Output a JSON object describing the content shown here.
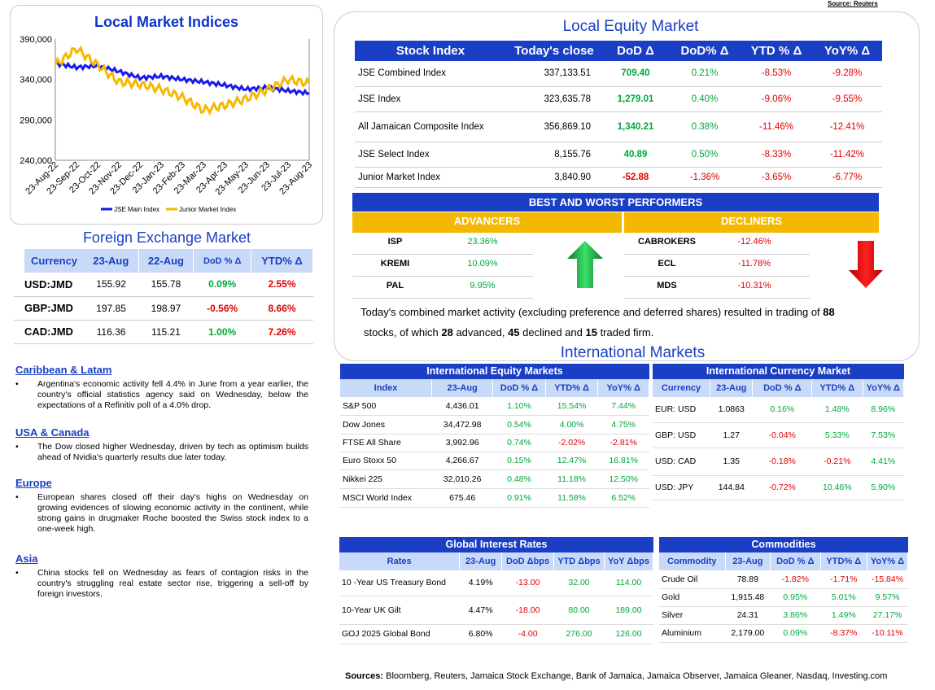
{
  "source_top": "Source: Reuters",
  "local_indices": {
    "title": "Local Market Indices",
    "y_ticks": [
      "390,000",
      "340,000",
      "290,000",
      "240,000"
    ],
    "legend": [
      "JSE Main Index",
      "Junior Market Index"
    ]
  },
  "chart_data": {
    "type": "line",
    "x": [
      "23-Aug-22",
      "23-Sep-22",
      "23-Oct-22",
      "23-Nov-22",
      "23-Dec-22",
      "23-Jan-23",
      "23-Feb-23",
      "23-Mar-23",
      "23-Apr-23",
      "23-May-23",
      "23-Jun-23",
      "23-Jul-23",
      "23-Aug-23"
    ],
    "ylim": [
      240000,
      390000
    ],
    "series": [
      {
        "name": "JSE Main Index",
        "color": "#1a1aee",
        "values": [
          360000,
          355000,
          357000,
          350000,
          342000,
          344000,
          340000,
          337000,
          333000,
          328000,
          330000,
          326000,
          323000
        ]
      },
      {
        "name": "Junior Market Index",
        "color": "#f5b800",
        "values": [
          358000,
          378000,
          358000,
          337000,
          334000,
          328000,
          318000,
          302000,
          308000,
          316000,
          327000,
          340000,
          335000
        ]
      }
    ]
  },
  "fx": {
    "title": "Foreign Exchange Market",
    "headers": [
      "Currency",
      "23-Aug",
      "22-Aug",
      "DoD % Δ",
      "YTD% Δ"
    ],
    "rows": [
      [
        "USD:JMD",
        "155.92",
        "155.78",
        "0.09%",
        "2.55%"
      ],
      [
        "GBP:JMD",
        "197.85",
        "198.97",
        "-0.56%",
        "8.66%"
      ],
      [
        "CAD:JMD",
        "116.36",
        "115.21",
        "1.00%",
        "7.26%"
      ]
    ]
  },
  "news": [
    {
      "head": "Caribbean & Latam",
      "text": "Argentina's economic activity fell 4.4% in June from a year earlier, the country's official statistics agency said on Wednesday, below the expectations of a Refinitiv poll of a 4.0% drop."
    },
    {
      "head": "USA & Canada",
      "text": "The Dow closed higher Wednesday, driven by tech as optimism builds ahead of Nvidia's quarterly results due later today."
    },
    {
      "head": "Europe",
      "text": "European shares closed off their day's highs on Wednesday on growing evidences of slowing economic activity in the continent, while strong gains in drugmaker Roche boosted the Swiss stock index to a one-week high."
    },
    {
      "head": "Asia",
      "text": "China stocks fell on Wednesday as fears of contagion risks in the country's struggling real estate sector rise, triggering a sell-off by foreign investors."
    }
  ],
  "equity": {
    "title": "Local Equity Market",
    "headers": [
      "Stock Index",
      "Today's close",
      "DoD  Δ",
      "DoD% Δ",
      "YTD % Δ",
      "YoY% Δ"
    ],
    "rows": [
      [
        "JSE Combined Index",
        "337,133.51",
        "709.40",
        "0.21%",
        "-8.53%",
        "-9.28%"
      ],
      [
        "JSE Index",
        "323,635.78",
        "1,279.01",
        "0.40%",
        "-9.06%",
        "-9.55%"
      ],
      [
        "All Jamaican Composite Index",
        "356,869.10",
        "1,340.21",
        "0.38%",
        "-11.46%",
        "-12.41%"
      ],
      [
        "JSE Select Index",
        "8,155.76",
        "40.89",
        "0.50%",
        "-8.33%",
        "-11.42%"
      ],
      [
        "Junior Market Index",
        "3,840.90",
        "-52.88",
        "-1.36%",
        "-3.65%",
        "-6.77%"
      ]
    ],
    "bw_title": "BEST AND WORST PERFORMERS",
    "adv_label": "ADVANCERS",
    "dec_label": "DECLINERS",
    "advancers": [
      [
        "ISP",
        "23.36%"
      ],
      [
        "KREMI",
        "10.09%"
      ],
      [
        "PAL",
        "9.95%"
      ]
    ],
    "decliners": [
      [
        "CABROKERS",
        "-12.46%"
      ],
      [
        "ECL",
        "-11.78%"
      ],
      [
        "MDS",
        "-10.31%"
      ]
    ],
    "summary_1": "Today's combined market activity (excluding preference and deferred shares) resulted in trading of ",
    "summary_n1": "88",
    "summary_2": "stocks, of which ",
    "summary_n2": "28",
    "summary_3": " advanced, ",
    "summary_n3": "45",
    "summary_4": " declined and ",
    "summary_n4": "15",
    "summary_5": " traded firm."
  },
  "intl": {
    "title": "International Markets",
    "eq_title": "International Equity Markets",
    "eq_headers": [
      "Index",
      "23-Aug",
      "DoD % Δ",
      "YTD% Δ",
      "YoY% Δ"
    ],
    "eq_rows": [
      [
        "S&P 500",
        "4,436.01",
        "1.10%",
        "15.54%",
        "7.44%"
      ],
      [
        "Dow Jones",
        "34,472.98",
        "0.54%",
        "4.00%",
        "4.75%"
      ],
      [
        "FTSE All Share",
        "3,992.96",
        "0.74%",
        "-2.02%",
        "-2.81%"
      ],
      [
        "Euro Stoxx 50",
        "4,266.67",
        "0.15%",
        "12.47%",
        "16.81%"
      ],
      [
        "Nikkei 225",
        "32,010.26",
        "0.48%",
        "11.18%",
        "12.50%"
      ],
      [
        "MSCI World Index",
        "675.46",
        "0.91%",
        "11.58%",
        "6.52%"
      ]
    ],
    "cur_title": "International Currency Market",
    "cur_headers": [
      "Currency",
      "23-Aug",
      "DoD % Δ",
      "YTD% Δ",
      "YoY% Δ"
    ],
    "cur_rows": [
      [
        "EUR: USD",
        "1.0863",
        "0.16%",
        "1.48%",
        "8.96%"
      ],
      [
        "GBP: USD",
        "1.27",
        "-0.04%",
        "5.33%",
        "7.53%"
      ],
      [
        "USD: CAD",
        "1.35",
        "-0.18%",
        "-0.21%",
        "4.41%"
      ],
      [
        "USD: JPY",
        "144.84",
        "-0.72%",
        "10.46%",
        "5.90%"
      ]
    ],
    "rates_title": "Global Interest Rates",
    "rates_headers": [
      "Rates",
      "23-Aug",
      "DoD Δbps",
      "YTD Δbps",
      "YoY Δbps"
    ],
    "rates_rows": [
      [
        "10 -Year US Treasury Bond",
        "4.19%",
        "-13.00",
        "32.00",
        "114.00"
      ],
      [
        "10-Year UK Gilt",
        "4.47%",
        "-18.00",
        "80.00",
        "189.00"
      ],
      [
        "GOJ 2025 Global Bond",
        "6.80%",
        "-4.00",
        "276.00",
        "126.00"
      ]
    ],
    "com_title": "Commodities",
    "com_headers": [
      "Commodity",
      "23-Aug",
      "DoD % Δ",
      "YTD% Δ",
      "YoY% Δ"
    ],
    "com_rows": [
      [
        "Crude Oil",
        "78.89",
        "-1.82%",
        "-1.71%",
        "-15.84%"
      ],
      [
        "Gold",
        "1,915.48",
        "0.95%",
        "5.01%",
        "9.57%"
      ],
      [
        "Silver",
        "24.31",
        "3.86%",
        "1.49%",
        "27.17%"
      ],
      [
        "Aluminium",
        "2,179.00",
        "0.09%",
        "-8.37%",
        "-10.11%"
      ]
    ]
  },
  "sources_label": "Sources:",
  "sources_text": " Bloomberg, Reuters, Jamaica Stock Exchange, Bank of Jamaica, Jamaica Observer, Jamaica Gleaner, Nasdaq, Investing.com"
}
